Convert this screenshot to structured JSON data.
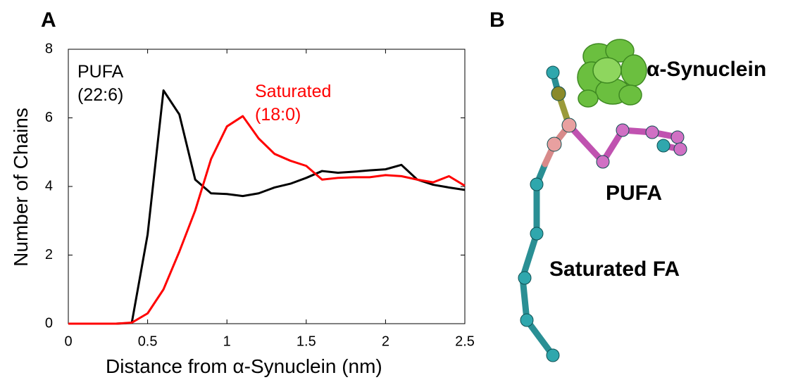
{
  "panel_labels": {
    "a": "A",
    "b": "B"
  },
  "chart_data": {
    "type": "line",
    "x_label": "Distance from  α-Synuclein (nm)",
    "y_label": "Number of Chains",
    "x": [
      0,
      0.1,
      0.2,
      0.3,
      0.4,
      0.5,
      0.6,
      0.7,
      0.8,
      0.9,
      1.0,
      1.1,
      1.2,
      1.3,
      1.4,
      1.5,
      1.6,
      1.7,
      1.8,
      1.9,
      2.0,
      2.1,
      2.2,
      2.3,
      2.4,
      2.5
    ],
    "series": [
      {
        "name": "PUFA (22:6)",
        "color": "#000000",
        "values": [
          0,
          0,
          0,
          0,
          0.02,
          2.6,
          6.8,
          6.1,
          4.2,
          3.8,
          3.78,
          3.72,
          3.8,
          3.97,
          4.08,
          4.25,
          4.45,
          4.4,
          4.43,
          4.47,
          4.5,
          4.63,
          4.2,
          4.05,
          3.97,
          3.9
        ]
      },
      {
        "name": "Saturated (18:0)",
        "color": "#ff0000",
        "values": [
          0,
          0,
          0,
          0,
          0.03,
          0.3,
          1.0,
          2.1,
          3.3,
          4.8,
          5.75,
          6.05,
          5.4,
          4.95,
          4.75,
          4.6,
          4.2,
          4.25,
          4.27,
          4.27,
          4.33,
          4.3,
          4.2,
          4.12,
          4.3,
          4.02
        ]
      }
    ],
    "xlim": [
      0,
      2.5
    ],
    "xticks": [
      0,
      0.5,
      1,
      1.5,
      2,
      2.5
    ],
    "ylim": [
      0,
      8
    ],
    "yticks": [
      0,
      2,
      4,
      6,
      8
    ],
    "grid": false
  },
  "illustration": {
    "protein_label": "α-Synuclein",
    "pufa_label": "PUFA",
    "saturated_label": "Saturated FA"
  }
}
